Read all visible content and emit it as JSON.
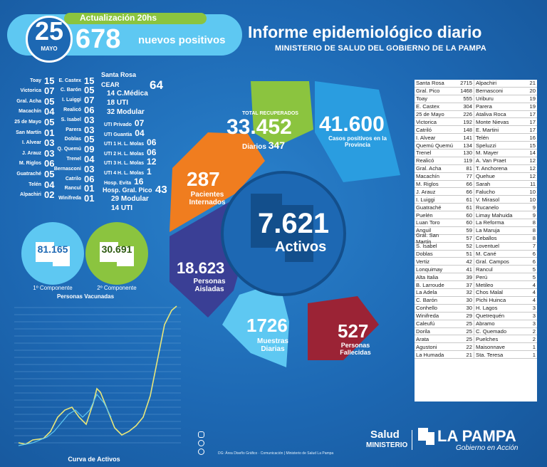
{
  "header": {
    "update": "Actualización 20hs",
    "day": "25",
    "month": "MAYO",
    "count": "678",
    "new_positives": "nuevos positivos",
    "title": "Informe epidemiológico diario",
    "subtitle": "MINISTERIO DE SALUD DEL GOBIERNO DE LA PAMPA"
  },
  "localities_a": [
    {
      "name": "Toay",
      "value": "15"
    },
    {
      "name": "Victorica",
      "value": "07"
    },
    {
      "name": "Gral. Acha",
      "value": "05"
    },
    {
      "name": "Macachín",
      "value": "04"
    },
    {
      "name": "25 de Mayo",
      "value": "05"
    },
    {
      "name": "San Martín",
      "value": "01"
    },
    {
      "name": "I. Alvear",
      "value": "03"
    },
    {
      "name": "J. Arauz",
      "value": "03"
    },
    {
      "name": "M. Riglos",
      "value": "06"
    },
    {
      "name": "Guatraché",
      "value": "05"
    },
    {
      "name": "Telén",
      "value": "04"
    },
    {
      "name": "Alpachiri",
      "value": "02"
    }
  ],
  "localities_b": [
    {
      "name": "E. Castex",
      "value": "15"
    },
    {
      "name": "C. Barón",
      "value": "05"
    },
    {
      "name": "I. Luiggi",
      "value": "07"
    },
    {
      "name": "Realicó",
      "value": "06"
    },
    {
      "name": "S. Isabel",
      "value": "03"
    },
    {
      "name": "Parera",
      "value": "03"
    },
    {
      "name": "Doblas",
      "value": "05"
    },
    {
      "name": "Q. Quemú",
      "value": "09"
    },
    {
      "name": "Trenel",
      "value": "04"
    },
    {
      "name": "Bernasconi",
      "value": "03"
    },
    {
      "name": "Catrilo",
      "value": "06"
    },
    {
      "name": "Rancul",
      "value": "01"
    },
    {
      "name": "Winifreda",
      "value": "01"
    }
  ],
  "santa_rosa": {
    "label": "Santa Rosa",
    "cear": "CEAR",
    "total": "64",
    "items": [
      {
        "value": "14",
        "label": "C.Médica"
      },
      {
        "value": "18",
        "label": "UTI"
      },
      {
        "value": "32",
        "label": "Modular"
      },
      {
        "label": "UTI Privado",
        "value": "07"
      },
      {
        "label": "UTI Guantia",
        "value": "04"
      },
      {
        "label": "UTI 1 H. L. Molas",
        "value": "06"
      },
      {
        "label": "UTI 2 H. L. Molas",
        "value": "06"
      },
      {
        "label": "UTI 3 H. L. Molas",
        "value": "12"
      },
      {
        "label": "UTI 4 H. L. Molas",
        "value": "1"
      },
      {
        "label": "Hosp. Evita",
        "value": "16"
      }
    ]
  },
  "gral_pico": {
    "label": "Hosp. Gral. Pico",
    "total": "43",
    "items": [
      {
        "value": "29",
        "label": "Modular"
      },
      {
        "value": "14",
        "label": "UTI"
      }
    ]
  },
  "vaccines": {
    "first": "81.165",
    "first_label": "1º Componente",
    "second": "30.691",
    "second_label": "2º Componente",
    "title": "Personas Vacunadas"
  },
  "chart_title": "Curva de Activos",
  "stats": {
    "recovered_label": "TOTAL RECUPERADOS",
    "recovered": "33.452",
    "daily_label": "Diarios",
    "daily": "347",
    "cases": "41.600",
    "cases_label": "Casos positivos en la Provincia",
    "hospitalized": "287",
    "hospitalized_label": "Pacientes Internados",
    "active": "7.621",
    "active_label": "Activos",
    "isolated": "18.623",
    "isolated_label": "Personas Aisladas",
    "samples": "1726",
    "samples_label": "Muestras Diarias",
    "deaths": "527",
    "deaths_label": "Personas Fallecidas"
  },
  "table": [
    [
      "Santa Rosa",
      "2715",
      "Alpachiri",
      "21"
    ],
    [
      "Gral. Pico",
      "1468",
      "Bernasconi",
      "20"
    ],
    [
      "Toay",
      "555",
      "Uriburu",
      "19"
    ],
    [
      "E. Castex",
      "304",
      "Parera",
      "19"
    ],
    [
      "25 de Mayo",
      "226",
      "Ataliva Roca",
      "17"
    ],
    [
      "Victorica",
      "192",
      "Monte Nievas",
      "17"
    ],
    [
      "Catriló",
      "148",
      "E. Martini",
      "17"
    ],
    [
      "I. Alvear",
      "141",
      "Telén",
      "16"
    ],
    [
      "Quemú Quemú",
      "134",
      "Speluzzi",
      "15"
    ],
    [
      "Trenel",
      "130",
      "M. Mayer",
      "14"
    ],
    [
      "Realicó",
      "119",
      "A. Van Praet",
      "12"
    ],
    [
      "Gral. Acha",
      "81",
      "T. Anchorena",
      "12"
    ],
    [
      "Macachín",
      "77",
      "Quehue",
      "12"
    ],
    [
      "M. Riglos",
      "66",
      "Sarah",
      "11"
    ],
    [
      "J. Arauz",
      "66",
      "Falucho",
      "10"
    ],
    [
      "I. Luiggi",
      "61",
      "V. Mirasol",
      "10"
    ],
    [
      "Guatraché",
      "61",
      "Rucanelo",
      "9"
    ],
    [
      "Puelén",
      "60",
      "Limay Mahuida",
      "9"
    ],
    [
      "Luan Toro",
      "60",
      "La Reforma",
      "8"
    ],
    [
      "Anguil",
      "59",
      "La Maruja",
      "8"
    ],
    [
      "Gral. San Martín",
      "57",
      "Ceballos",
      "8"
    ],
    [
      "S. Isabel",
      "52",
      "Loventuel",
      "7"
    ],
    [
      "Doblas",
      "51",
      "M. Cané",
      "6"
    ],
    [
      "Vertiz",
      "42",
      "Gral. Campos",
      "6"
    ],
    [
      "Lonquimay",
      "41",
      "Rancul",
      "5"
    ],
    [
      "Alta Italia",
      "39",
      "Perú",
      "5"
    ],
    [
      "B. Larroude",
      "37",
      "Metileo",
      "4"
    ],
    [
      "La Adela",
      "32",
      "Chos Malal",
      "4"
    ],
    [
      "C. Barón",
      "30",
      "Pichi Huinca",
      "4"
    ],
    [
      "Conhello",
      "30",
      "H. Lagos",
      "3"
    ],
    [
      "Winifreda",
      "29",
      "Quetrequén",
      "3"
    ],
    [
      "Caleufú",
      "25",
      "Abramo",
      "3"
    ],
    [
      "Dorila",
      "25",
      "C. Quemado",
      "2"
    ],
    [
      "Arata",
      "25",
      "Puelches",
      "2"
    ],
    [
      "Agustoni",
      "22",
      "Maisonnave",
      "1"
    ],
    [
      "La Humada",
      "21",
      "Sta. Teresa",
      "1"
    ]
  ],
  "footer": {
    "salud": "Salud",
    "ministerio": "MINISTERIO",
    "brand": "LA PAMPA",
    "slogan": "Gobierno en Acción",
    "credit": "DG: Área Diseño Gráfico · Comunicación | Ministerio de Salud La Pampa"
  },
  "colors": {
    "blue": "#1d68b3",
    "light_blue": "#5ec8f2",
    "green": "#8bc43f",
    "orange": "#f07d1f",
    "purple": "#3a3f95",
    "red": "#9b2335"
  }
}
